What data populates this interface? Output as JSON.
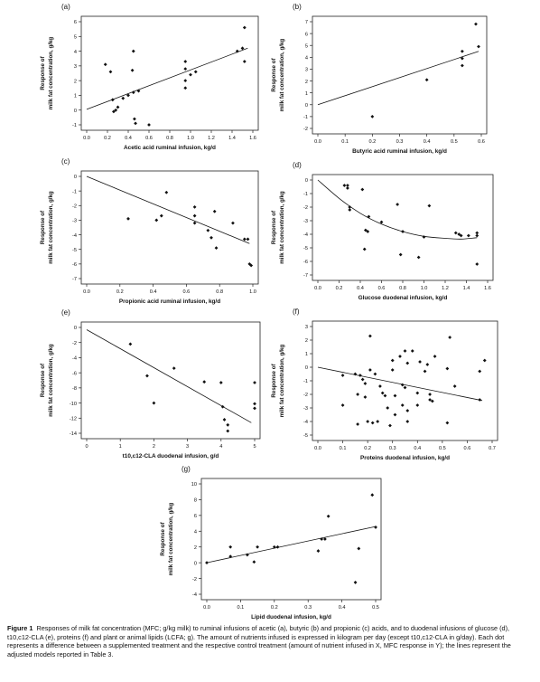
{
  "figure": {
    "caption_label": "Figure 1",
    "caption_text": "Responses of milk fat concentration (MFC; g/kg milk) to ruminal infusions of acetic (a), butyric (b) and propionic (c) acids, and to duodenal infusions of glucose (d), t10,c12-CLA (e), proteins (f) and plant or animal lipids (LCFA; g). The amount of nutrients infused is expressed in kilogram per day (except t10,c12-CLA in g/day). Each dot represents a difference between a supplemented treatment and the respective control treatment (amount of nutrient infused in X, MFC response in Y); the lines represent the adjusted models reported in Table 3."
  },
  "chart_data": [
    {
      "panel": "(a)",
      "type": "scatter",
      "xlabel": "Acetic acid ruminal infusion, kg/d",
      "ylabel": [
        "Response of",
        "milk fat concentration, g/kg"
      ],
      "xlim": [
        0,
        1.6
      ],
      "ylim": [
        -1,
        6
      ],
      "xticks": [
        0,
        0.2,
        0.4,
        0.6,
        0.8,
        1.0,
        1.2,
        1.4,
        1.6
      ],
      "xtick_labels": [
        "0.0",
        "0.2",
        "0.4",
        "0.6",
        "0.8",
        "1.0",
        "1.2",
        "1.4",
        "1.6"
      ],
      "yticks": [
        -1,
        0,
        1,
        2,
        3,
        4,
        5,
        6
      ],
      "ytick_labels": [
        "-1",
        "0",
        "1",
        "2",
        "3",
        "4",
        "5",
        "6"
      ],
      "points": [
        [
          0.18,
          3.1
        ],
        [
          0.23,
          2.6
        ],
        [
          0.25,
          0.7
        ],
        [
          0.26,
          -0.1
        ],
        [
          0.28,
          0.0
        ],
        [
          0.3,
          0.2
        ],
        [
          0.35,
          0.8
        ],
        [
          0.4,
          1.0
        ],
        [
          0.45,
          1.2
        ],
        [
          0.44,
          2.7
        ],
        [
          0.45,
          4.0
        ],
        [
          0.46,
          -0.6
        ],
        [
          0.5,
          1.3
        ],
        [
          0.47,
          -0.9
        ],
        [
          0.6,
          -1.0
        ],
        [
          0.95,
          3.3
        ],
        [
          0.95,
          2.8
        ],
        [
          0.95,
          2.0
        ],
        [
          0.95,
          1.5
        ],
        [
          1.0,
          2.4
        ],
        [
          1.05,
          2.6
        ],
        [
          1.45,
          4.0
        ],
        [
          1.5,
          4.2
        ],
        [
          1.52,
          5.6
        ],
        [
          1.52,
          3.3
        ]
      ],
      "line": {
        "kind": "linear",
        "x": [
          0.0,
          1.55
        ],
        "y": [
          0.05,
          4.2
        ]
      }
    },
    {
      "panel": "(b)",
      "type": "scatter",
      "xlabel": "Butyric acid ruminal infusion, kg/d",
      "ylabel": [
        "Response of",
        "milk fat concentration, g/kg"
      ],
      "xlim": [
        0,
        0.6
      ],
      "ylim": [
        -2,
        7
      ],
      "xticks": [
        0,
        0.1,
        0.2,
        0.3,
        0.4,
        0.5,
        0.6
      ],
      "xtick_labels": [
        "0.0",
        "0.1",
        "0.2",
        "0.3",
        "0.4",
        "0.5",
        "0.6"
      ],
      "yticks": [
        -2,
        -1,
        0,
        1,
        2,
        3,
        4,
        5,
        6,
        7
      ],
      "ytick_labels": [
        "-2",
        "-1",
        "0",
        "1",
        "2",
        "3",
        "4",
        "5",
        "6",
        "7"
      ],
      "points": [
        [
          0.2,
          -1.0
        ],
        [
          0.4,
          2.1
        ],
        [
          0.53,
          4.5
        ],
        [
          0.53,
          3.9
        ],
        [
          0.53,
          3.3
        ],
        [
          0.58,
          6.8
        ],
        [
          0.59,
          4.9
        ]
      ],
      "line": {
        "kind": "linear",
        "x": [
          0.0,
          0.59
        ],
        "y": [
          0.0,
          4.5
        ]
      }
    },
    {
      "panel": "(c)",
      "type": "scatter",
      "xlabel": "Propionic acid ruminal infusion, kg/d",
      "ylabel": [
        "Response of",
        "milk fat concentration, g/kg"
      ],
      "xlim": [
        0,
        1.0
      ],
      "ylim": [
        -7,
        0
      ],
      "xticks": [
        0,
        0.2,
        0.4,
        0.6,
        0.8,
        1.0
      ],
      "xtick_labels": [
        "0.0",
        "0.2",
        "0.4",
        "0.6",
        "0.8",
        "1.0"
      ],
      "yticks": [
        -7,
        -6,
        -5,
        -4,
        -3,
        -2,
        -1,
        0
      ],
      "ytick_labels": [
        "-7",
        "-6",
        "-5",
        "-4",
        "-3",
        "-2",
        "-1",
        "0"
      ],
      "points": [
        [
          0.25,
          -2.9
        ],
        [
          0.42,
          -3.0
        ],
        [
          0.45,
          -2.7
        ],
        [
          0.48,
          -1.1
        ],
        [
          0.65,
          -2.1
        ],
        [
          0.65,
          -2.7
        ],
        [
          0.65,
          -3.2
        ],
        [
          0.73,
          -3.7
        ],
        [
          0.75,
          -4.2
        ],
        [
          0.77,
          -2.4
        ],
        [
          0.78,
          -4.9
        ],
        [
          0.88,
          -3.2
        ],
        [
          0.95,
          -4.3
        ],
        [
          0.97,
          -4.3
        ],
        [
          0.98,
          -6.0
        ],
        [
          0.99,
          -6.1
        ]
      ],
      "line": {
        "kind": "linear",
        "x": [
          0.0,
          0.98
        ],
        "y": [
          0.0,
          -4.6
        ]
      }
    },
    {
      "panel": "(d)",
      "type": "scatter",
      "xlabel": "Glucose duodenal infusion, kg/d",
      "ylabel": [
        "Response of",
        "milk fat concentration, g/kg"
      ],
      "xlim": [
        0,
        1.6
      ],
      "ylim": [
        -7,
        0
      ],
      "xticks": [
        0,
        0.2,
        0.4,
        0.6,
        0.8,
        1.0,
        1.2,
        1.4,
        1.6
      ],
      "xtick_labels": [
        "0.0",
        "0.2",
        "0.4",
        "0.6",
        "0.8",
        "1.0",
        "1.2",
        "1.4",
        "1.6"
      ],
      "yticks": [
        -7,
        -6,
        -5,
        -4,
        -3,
        -2,
        -1,
        0
      ],
      "ytick_labels": [
        "-7",
        "-6",
        "-5",
        "-4",
        "-3",
        "-2",
        "-1",
        "0"
      ],
      "points": [
        [
          0.25,
          -0.4
        ],
        [
          0.28,
          -0.4
        ],
        [
          0.28,
          -0.6
        ],
        [
          0.3,
          -2.0
        ],
        [
          0.3,
          -2.2
        ],
        [
          0.42,
          -0.7
        ],
        [
          0.44,
          -5.1
        ],
        [
          0.45,
          -3.7
        ],
        [
          0.47,
          -3.8
        ],
        [
          0.48,
          -2.7
        ],
        [
          0.6,
          -3.1
        ],
        [
          0.75,
          -1.8
        ],
        [
          0.78,
          -5.5
        ],
        [
          0.8,
          -3.8
        ],
        [
          0.95,
          -5.7
        ],
        [
          1.0,
          -4.2
        ],
        [
          1.05,
          -1.9
        ],
        [
          1.3,
          -3.9
        ],
        [
          1.33,
          -4.0
        ],
        [
          1.35,
          -4.1
        ],
        [
          1.42,
          -4.1
        ],
        [
          1.5,
          -3.9
        ],
        [
          1.5,
          -4.1
        ],
        [
          1.5,
          -6.2
        ]
      ],
      "line": {
        "kind": "curve",
        "x": [
          0.0,
          0.2,
          0.4,
          0.6,
          0.8,
          1.0,
          1.2,
          1.35,
          1.5
        ],
        "y": [
          0.0,
          -1.35,
          -2.45,
          -3.25,
          -3.8,
          -4.15,
          -4.3,
          -4.35,
          -4.25
        ]
      }
    },
    {
      "panel": "(e)",
      "type": "scatter",
      "xlabel": "t10,c12-CLA duodenal infusion, g/d",
      "ylabel": [
        "Response of",
        "milk fat concentration, g/kg"
      ],
      "xlim": [
        0,
        5
      ],
      "ylim": [
        -14,
        0
      ],
      "xticks": [
        0,
        1,
        2,
        3,
        4,
        5
      ],
      "xtick_labels": [
        "0",
        "1",
        "2",
        "3",
        "4",
        "5"
      ],
      "yticks": [
        -14,
        -12,
        -10,
        -8,
        -6,
        -4,
        -2,
        0
      ],
      "ytick_labels": [
        "-14",
        "-12",
        "-10",
        "-8",
        "-6",
        "-4",
        "-2",
        "0"
      ],
      "points": [
        [
          1.3,
          -2.2
        ],
        [
          1.8,
          -6.4
        ],
        [
          2.0,
          -10.0
        ],
        [
          2.6,
          -5.4
        ],
        [
          3.5,
          -7.2
        ],
        [
          4.0,
          -7.3
        ],
        [
          4.05,
          -10.5
        ],
        [
          4.1,
          -12.2
        ],
        [
          4.2,
          -12.9
        ],
        [
          4.2,
          -13.7
        ],
        [
          5.0,
          -7.3
        ],
        [
          5.0,
          -10.1
        ],
        [
          5.0,
          -10.7
        ]
      ],
      "line": {
        "kind": "linear",
        "x": [
          0.0,
          4.9
        ],
        "y": [
          -0.3,
          -12.6
        ]
      }
    },
    {
      "panel": "(f)",
      "type": "scatter",
      "xlabel": "Proteins duodenal infusion, kg/d",
      "ylabel": [
        "Response of",
        "milk fat concentration, g/kg"
      ],
      "xlim": [
        0,
        0.7
      ],
      "ylim": [
        -5,
        3
      ],
      "xticks": [
        0,
        0.1,
        0.2,
        0.3,
        0.4,
        0.5,
        0.6,
        0.7
      ],
      "xtick_labels": [
        "0.0",
        "0.1",
        "0.2",
        "0.3",
        "0.4",
        "0.5",
        "0.6",
        "0.7"
      ],
      "yticks": [
        -5,
        -4,
        -3,
        -2,
        -1,
        0,
        1,
        2,
        3
      ],
      "ytick_labels": [
        "-5",
        "-4",
        "-3",
        "-2",
        "-1",
        "0",
        "1",
        "2",
        "3"
      ],
      "points": [
        [
          0.1,
          -0.6
        ],
        [
          0.1,
          -2.8
        ],
        [
          0.15,
          -0.5
        ],
        [
          0.16,
          -2.0
        ],
        [
          0.16,
          -4.2
        ],
        [
          0.17,
          -0.6
        ],
        [
          0.18,
          -0.9
        ],
        [
          0.19,
          -1.2
        ],
        [
          0.19,
          -2.2
        ],
        [
          0.2,
          -4.0
        ],
        [
          0.21,
          2.3
        ],
        [
          0.21,
          -0.2
        ],
        [
          0.22,
          -4.1
        ],
        [
          0.23,
          -0.5
        ],
        [
          0.24,
          -4.0
        ],
        [
          0.25,
          -1.4
        ],
        [
          0.26,
          -1.9
        ],
        [
          0.27,
          -2.1
        ],
        [
          0.28,
          -3.0
        ],
        [
          0.29,
          -4.3
        ],
        [
          0.3,
          -0.2
        ],
        [
          0.3,
          0.5
        ],
        [
          0.31,
          -2.1
        ],
        [
          0.31,
          -3.5
        ],
        [
          0.33,
          0.8
        ],
        [
          0.34,
          -1.3
        ],
        [
          0.34,
          -2.8
        ],
        [
          0.35,
          1.2
        ],
        [
          0.35,
          -1.5
        ],
        [
          0.36,
          0.3
        ],
        [
          0.36,
          -3.2
        ],
        [
          0.36,
          -4.0
        ],
        [
          0.38,
          1.2
        ],
        [
          0.4,
          -1.9
        ],
        [
          0.4,
          -2.8
        ],
        [
          0.41,
          0.4
        ],
        [
          0.43,
          -0.3
        ],
        [
          0.44,
          0.2
        ],
        [
          0.45,
          -2.0
        ],
        [
          0.45,
          -2.4
        ],
        [
          0.46,
          -2.5
        ],
        [
          0.47,
          0.8
        ],
        [
          0.52,
          -0.1
        ],
        [
          0.52,
          -4.1
        ],
        [
          0.53,
          2.2
        ],
        [
          0.55,
          -1.4
        ],
        [
          0.65,
          -0.3
        ],
        [
          0.65,
          -2.4
        ],
        [
          0.67,
          0.5
        ]
      ],
      "line": {
        "kind": "linear",
        "x": [
          0.0,
          0.66
        ],
        "y": [
          0.0,
          -2.45
        ]
      }
    },
    {
      "panel": "(g)",
      "type": "scatter",
      "xlabel": "Lipid duodenal infusion, kg/d",
      "ylabel": [
        "Response of",
        "milk fat concentration, g/kg"
      ],
      "xlim": [
        0,
        0.5
      ],
      "ylim": [
        -4,
        10
      ],
      "xticks": [
        0,
        0.1,
        0.2,
        0.3,
        0.4,
        0.5
      ],
      "xtick_labels": [
        "0.0",
        "0.1",
        "0.2",
        "0.3",
        "0.4",
        "0.5"
      ],
      "yticks": [
        -4,
        -2,
        0,
        2,
        4,
        6,
        8,
        10
      ],
      "ytick_labels": [
        "-4",
        "-2",
        "0",
        "2",
        "4",
        "6",
        "8",
        "10"
      ],
      "points": [
        [
          0.0,
          0.0
        ],
        [
          0.07,
          0.8
        ],
        [
          0.07,
          2.0
        ],
        [
          0.12,
          1.0
        ],
        [
          0.14,
          0.1
        ],
        [
          0.15,
          2.0
        ],
        [
          0.2,
          2.0
        ],
        [
          0.21,
          2.0
        ],
        [
          0.33,
          1.5
        ],
        [
          0.34,
          3.0
        ],
        [
          0.35,
          3.0
        ],
        [
          0.36,
          5.9
        ],
        [
          0.44,
          -2.5
        ],
        [
          0.45,
          1.8
        ],
        [
          0.49,
          8.6
        ],
        [
          0.5,
          4.5
        ]
      ],
      "line": {
        "kind": "linear",
        "x": [
          0.0,
          0.5
        ],
        "y": [
          0.0,
          4.6
        ]
      }
    }
  ]
}
